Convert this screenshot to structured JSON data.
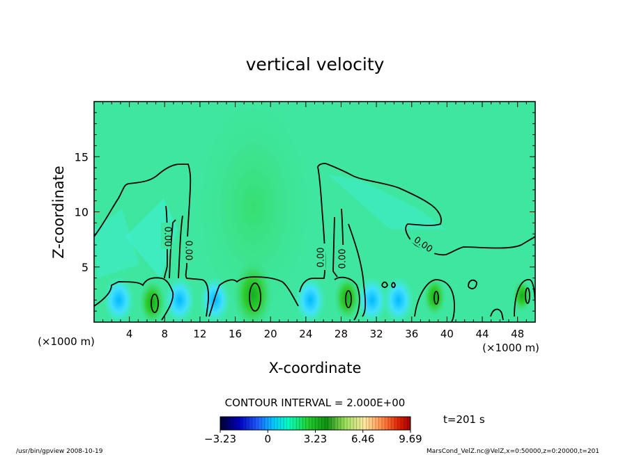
{
  "chart_data": {
    "type": "heatmap",
    "title": "vertical velocity",
    "xlabel": "X-coordinate",
    "ylabel": "Z-coordinate",
    "x_unit_left": "(×1000 m)",
    "x_unit_right": "(×1000 m)",
    "xlim": [
      0,
      50
    ],
    "ylim": [
      0,
      20
    ],
    "x_ticks": [
      4,
      8,
      12,
      16,
      20,
      24,
      28,
      32,
      36,
      40,
      44,
      48
    ],
    "y_ticks": [
      5,
      10,
      15
    ],
    "contour_interval_text": "CONTOUR INTERVAL = 2.000E+00",
    "contour_labels": [
      "0.00",
      "0.00",
      "0.00",
      "0.00",
      "0.00"
    ],
    "time_label": "t=201 s",
    "colorbar": {
      "min": -3.23,
      "max": 9.69,
      "tick_labels": [
        "−3.23",
        "0",
        "3.23",
        "6.46",
        "9.69"
      ],
      "tick_values": [
        -3.23,
        0,
        3.23,
        6.46,
        9.69
      ]
    },
    "updrafts": [
      {
        "x": 6.6,
        "z": 1.8,
        "peak": 3.5
      },
      {
        "x": 18.0,
        "z": 2.5,
        "peak": 6.0
      },
      {
        "x": 28.7,
        "z": 2.2,
        "peak": 3.5
      },
      {
        "x": 38.6,
        "z": 2.3,
        "peak": 3.0
      },
      {
        "x": 48.5,
        "z": 2.4,
        "peak": 2.5
      }
    ],
    "downdrafts": [
      {
        "x": 2.8,
        "z": 2.0
      },
      {
        "x": 9.7,
        "z": 2.0
      },
      {
        "x": 13.7,
        "z": 2.0
      },
      {
        "x": 24.5,
        "z": 2.0
      },
      {
        "x": 31.5,
        "z": 2.0
      },
      {
        "x": 34.5,
        "z": 2.0
      }
    ],
    "grid": false
  },
  "footer": {
    "left": "/usr/bin/gpview   2008-10-19",
    "right": "MarsCond_VelZ.nc@VelZ,x=0:50000,z=0:20000,t=201"
  }
}
